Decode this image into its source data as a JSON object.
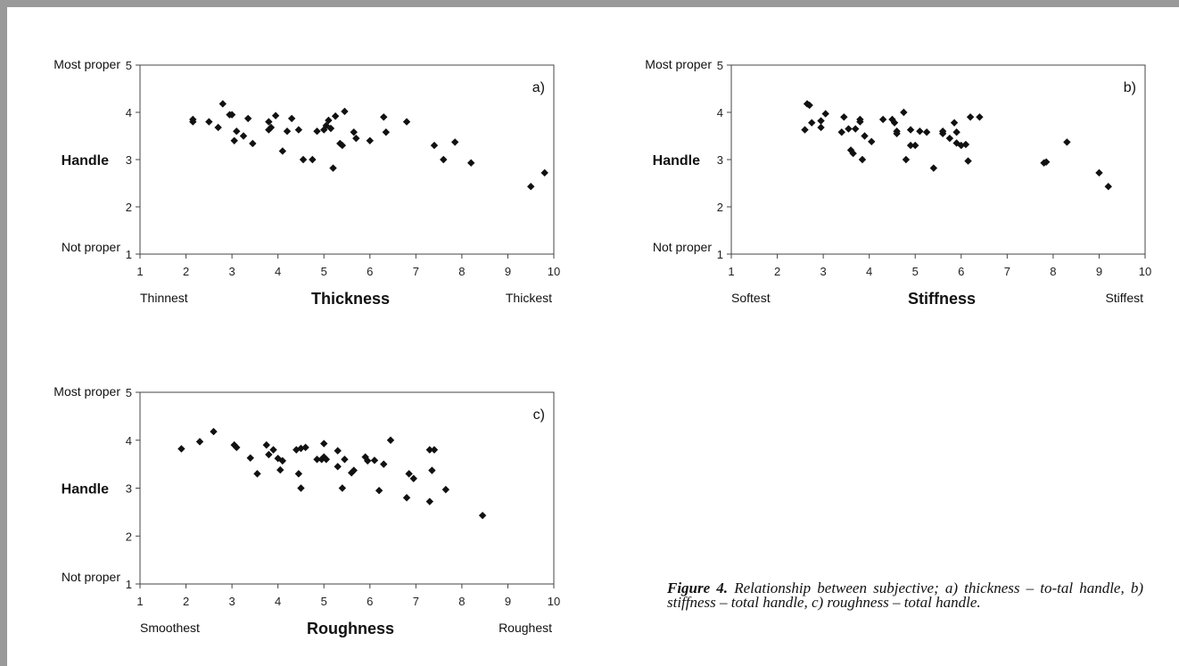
{
  "caption": {
    "label": "Figure 4.",
    "text": "Relationship between subjective; a) thickness – to-tal handle, b) stiffness – total handle, c) roughness – total handle."
  },
  "chart_data": [
    {
      "type": "scatter",
      "panel_label": "a)",
      "xlabel": "Thickness",
      "ylabel": "Handle",
      "x_low_label": "Thinnest",
      "x_high_label": "Thickest",
      "y_top_label": "Most proper",
      "y_bottom_label": "Not proper",
      "xlim": [
        1,
        10
      ],
      "ylim": [
        1,
        5
      ],
      "xticks": [
        1,
        2,
        3,
        4,
        5,
        6,
        7,
        8,
        9,
        10
      ],
      "yticks": [
        1,
        2,
        3,
        4,
        5
      ],
      "grid": false,
      "points": [
        [
          2.15,
          3.85
        ],
        [
          2.15,
          3.8
        ],
        [
          2.5,
          3.8
        ],
        [
          2.7,
          3.68
        ],
        [
          2.8,
          4.18
        ],
        [
          2.95,
          3.95
        ],
        [
          3.0,
          3.95
        ],
        [
          3.05,
          3.4
        ],
        [
          3.1,
          3.6
        ],
        [
          3.25,
          3.5
        ],
        [
          3.35,
          3.87
        ],
        [
          3.45,
          3.34
        ],
        [
          3.8,
          3.8
        ],
        [
          3.8,
          3.63
        ],
        [
          3.85,
          3.68
        ],
        [
          3.95,
          3.93
        ],
        [
          4.1,
          3.18
        ],
        [
          4.2,
          3.6
        ],
        [
          4.3,
          3.87
        ],
        [
          4.45,
          3.63
        ],
        [
          4.55,
          3.0
        ],
        [
          4.75,
          3.0
        ],
        [
          4.85,
          3.6
        ],
        [
          5.0,
          3.63
        ],
        [
          5.05,
          3.72
        ],
        [
          5.1,
          3.83
        ],
        [
          5.15,
          3.66
        ],
        [
          5.2,
          2.82
        ],
        [
          5.25,
          3.92
        ],
        [
          5.35,
          3.34
        ],
        [
          5.4,
          3.3
        ],
        [
          5.45,
          4.02
        ],
        [
          5.65,
          3.58
        ],
        [
          5.7,
          3.45
        ],
        [
          6.0,
          3.4
        ],
        [
          6.3,
          3.9
        ],
        [
          6.35,
          3.58
        ],
        [
          6.8,
          3.8
        ],
        [
          7.4,
          3.3
        ],
        [
          7.6,
          3.0
        ],
        [
          7.85,
          3.37
        ],
        [
          8.2,
          2.93
        ],
        [
          9.5,
          2.43
        ],
        [
          9.8,
          2.72
        ]
      ]
    },
    {
      "type": "scatter",
      "panel_label": "b)",
      "xlabel": "Stiffness",
      "ylabel": "Handle",
      "x_low_label": "Softest",
      "x_high_label": "Stiffest",
      "y_top_label": "Most proper",
      "y_bottom_label": "Not proper",
      "xlim": [
        1,
        10
      ],
      "ylim": [
        1,
        5
      ],
      "xticks": [
        1,
        2,
        3,
        4,
        5,
        6,
        7,
        8,
        9,
        10
      ],
      "yticks": [
        1,
        2,
        3,
        4,
        5
      ],
      "grid": false,
      "points": [
        [
          2.6,
          3.63
        ],
        [
          2.65,
          4.18
        ],
        [
          2.7,
          4.15
        ],
        [
          2.75,
          3.78
        ],
        [
          2.95,
          3.68
        ],
        [
          2.95,
          3.82
        ],
        [
          3.05,
          3.97
        ],
        [
          3.4,
          3.58
        ],
        [
          3.45,
          3.9
        ],
        [
          3.55,
          3.65
        ],
        [
          3.6,
          3.2
        ],
        [
          3.65,
          3.13
        ],
        [
          3.7,
          3.65
        ],
        [
          3.8,
          3.8
        ],
        [
          3.8,
          3.85
        ],
        [
          3.85,
          3.0
        ],
        [
          3.9,
          3.5
        ],
        [
          4.05,
          3.38
        ],
        [
          4.3,
          3.85
        ],
        [
          4.5,
          3.85
        ],
        [
          4.55,
          3.78
        ],
        [
          4.6,
          3.55
        ],
        [
          4.6,
          3.6
        ],
        [
          4.75,
          4.0
        ],
        [
          4.8,
          3.0
        ],
        [
          4.9,
          3.3
        ],
        [
          4.9,
          3.63
        ],
        [
          5.0,
          3.3
        ],
        [
          5.1,
          3.6
        ],
        [
          5.25,
          3.58
        ],
        [
          5.4,
          2.82
        ],
        [
          5.6,
          3.55
        ],
        [
          5.6,
          3.6
        ],
        [
          5.75,
          3.45
        ],
        [
          5.85,
          3.78
        ],
        [
          5.9,
          3.35
        ],
        [
          5.9,
          3.58
        ],
        [
          6.0,
          3.3
        ],
        [
          6.1,
          3.32
        ],
        [
          6.15,
          2.97
        ],
        [
          6.2,
          3.9
        ],
        [
          6.4,
          3.9
        ],
        [
          7.8,
          2.93
        ],
        [
          7.85,
          2.95
        ],
        [
          8.3,
          3.37
        ],
        [
          9.0,
          2.72
        ],
        [
          9.2,
          2.43
        ]
      ]
    },
    {
      "type": "scatter",
      "panel_label": "c)",
      "xlabel": "Roughness",
      "ylabel": "Handle",
      "x_low_label": "Smoothest",
      "x_high_label": "Roughest",
      "y_top_label": "Most proper",
      "y_bottom_label": "Not proper",
      "xlim": [
        1,
        10
      ],
      "ylim": [
        1,
        5
      ],
      "xticks": [
        1,
        2,
        3,
        4,
        5,
        6,
        7,
        8,
        9,
        10
      ],
      "yticks": [
        1,
        2,
        3,
        4,
        5
      ],
      "grid": false,
      "points": [
        [
          1.9,
          3.82
        ],
        [
          2.3,
          3.97
        ],
        [
          2.6,
          4.18
        ],
        [
          3.05,
          3.9
        ],
        [
          3.1,
          3.85
        ],
        [
          3.4,
          3.63
        ],
        [
          3.55,
          3.3
        ],
        [
          3.75,
          3.9
        ],
        [
          3.8,
          3.7
        ],
        [
          3.9,
          3.8
        ],
        [
          4.0,
          3.62
        ],
        [
          4.05,
          3.38
        ],
        [
          4.1,
          3.57
        ],
        [
          4.4,
          3.8
        ],
        [
          4.45,
          3.3
        ],
        [
          4.5,
          3.83
        ],
        [
          4.5,
          3.0
        ],
        [
          4.6,
          3.85
        ],
        [
          4.85,
          3.6
        ],
        [
          4.95,
          3.6
        ],
        [
          5.0,
          3.93
        ],
        [
          5.0,
          3.65
        ],
        [
          5.05,
          3.6
        ],
        [
          5.3,
          3.78
        ],
        [
          5.3,
          3.45
        ],
        [
          5.4,
          3.0
        ],
        [
          5.45,
          3.6
        ],
        [
          5.6,
          3.32
        ],
        [
          5.65,
          3.37
        ],
        [
          5.9,
          3.65
        ],
        [
          5.95,
          3.57
        ],
        [
          6.1,
          3.58
        ],
        [
          6.2,
          2.95
        ],
        [
          6.3,
          3.5
        ],
        [
          6.45,
          4.0
        ],
        [
          6.8,
          2.8
        ],
        [
          6.85,
          3.3
        ],
        [
          6.95,
          3.2
        ],
        [
          7.3,
          2.72
        ],
        [
          7.3,
          3.8
        ],
        [
          7.35,
          3.37
        ],
        [
          7.4,
          3.8
        ],
        [
          7.65,
          2.97
        ],
        [
          8.45,
          2.43
        ]
      ]
    }
  ]
}
